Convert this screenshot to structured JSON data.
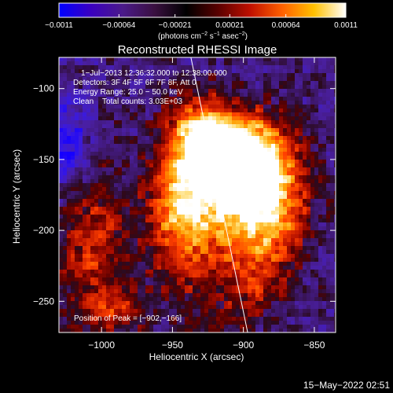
{
  "chart_data": {
    "type": "heatmap",
    "title": "Reconstructed RHESSI Image",
    "xlabel": "Heliocentric X (arcsec)",
    "ylabel": "Heliocentric Y (arcsec)",
    "xlim": [
      -1030,
      -835
    ],
    "ylim": [
      -272,
      -78
    ],
    "x_ticks": [
      -1000,
      -950,
      -900,
      -850
    ],
    "y_ticks": [
      -100,
      -150,
      -200,
      -250
    ],
    "x_tick_labels": [
      "−1000",
      "−950",
      "−900",
      "−850"
    ],
    "y_tick_labels": [
      "−100",
      "−150",
      "−200",
      "−250"
    ],
    "colorbar": {
      "min": -0.0011,
      "max": 0.0011,
      "tick_values": [
        -0.0011,
        -0.00064,
        -0.00021,
        0.00021,
        0.00064,
        0.0011
      ],
      "tick_labels": [
        "−0.0011",
        "−0.00064",
        "−0.00021",
        "0.00021",
        "0.00064",
        "0.0011"
      ],
      "units_prefix": "(photons cm",
      "units_e1": "−2",
      "units_mid": " s",
      "units_e2": "−1",
      "units_mid2": " asec",
      "units_e3": "−2",
      "units_suffix": ")",
      "colors": [
        "#0000ff",
        "#3a00c0",
        "#4b1a8a",
        "#3a1040",
        "#000000",
        "#5a0000",
        "#c01000",
        "#ff6000",
        "#ffc000",
        "#ffffff"
      ]
    },
    "annotations": [
      "1−Jul−2013 12:36:32.000 to 12:38:00.000",
      "Detectors: 3F 4F 5F 6F 7F 8F, Att 0",
      "Energy Range: 25.0 − 50.0 keV",
      "Clean    Total counts: 3.03E+03",
      "Position of Peak = [−902,−166]"
    ],
    "peak": {
      "x": -902,
      "y": -166
    },
    "limb_line": {
      "x": [
        -937,
        -897
      ],
      "y": [
        -78,
        -272
      ]
    },
    "sources": [
      {
        "x": -915,
        "y": -165,
        "sx": 28,
        "sy": 30,
        "amp": 1.0
      },
      {
        "x": -895,
        "y": -150,
        "sx": 20,
        "sy": 20,
        "amp": 0.75
      },
      {
        "x": -930,
        "y": -130,
        "sx": 14,
        "sy": 16,
        "amp": 0.65
      },
      {
        "x": -880,
        "y": -190,
        "sx": 18,
        "sy": 24,
        "amp": 0.55
      },
      {
        "x": -945,
        "y": -200,
        "sx": 14,
        "sy": 35,
        "amp": 0.5
      },
      {
        "x": -1005,
        "y": -210,
        "sx": 18,
        "sy": 35,
        "amp": 0.45
      },
      {
        "x": -990,
        "y": -255,
        "sx": 15,
        "sy": 12,
        "amp": 0.35
      },
      {
        "x": -900,
        "y": -235,
        "sx": 20,
        "sy": 22,
        "amp": 0.4
      },
      {
        "x": -1025,
        "y": -140,
        "sx": 10,
        "sy": 20,
        "amp": -0.45
      }
    ],
    "grid": false
  },
  "timestamp": "15−May−2022 02:51"
}
